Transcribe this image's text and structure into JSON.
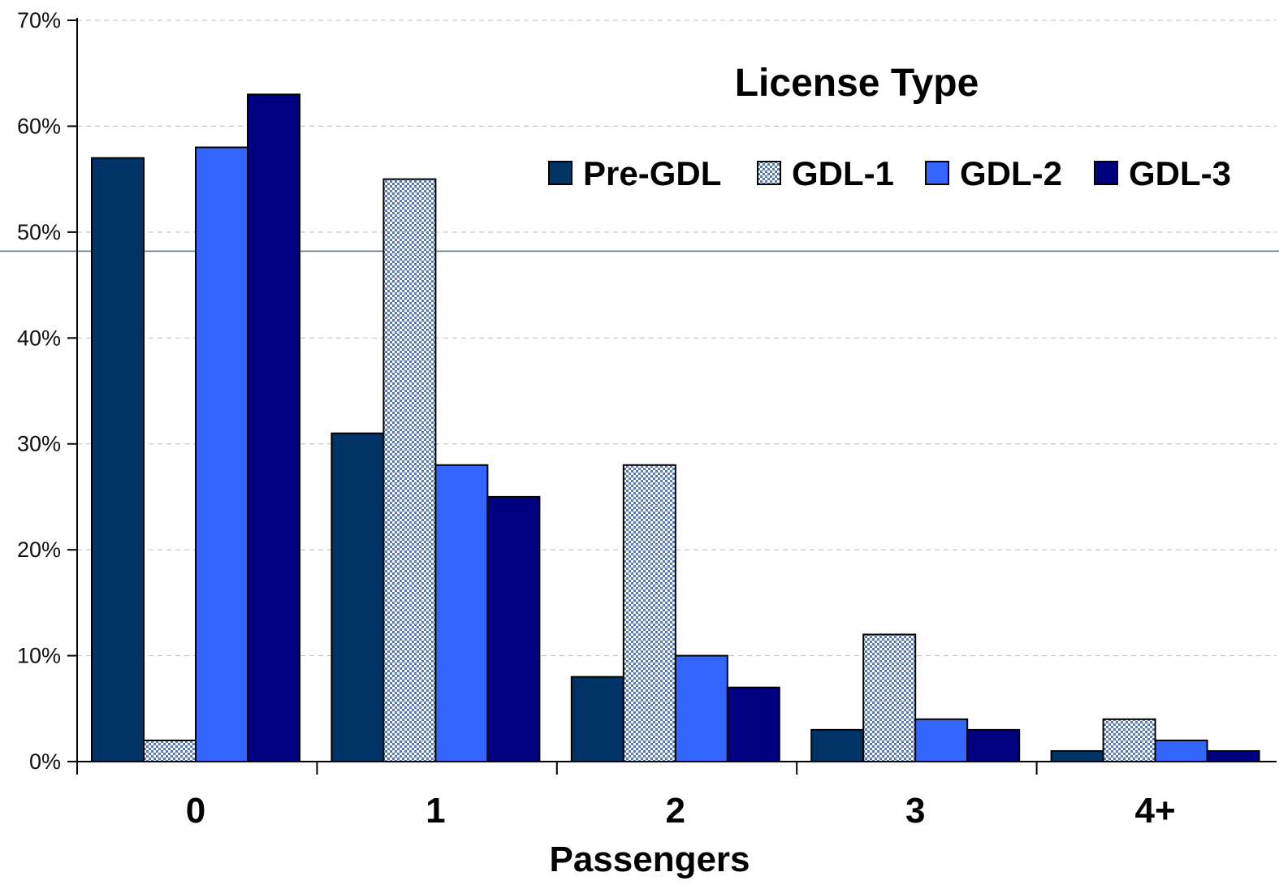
{
  "chart_data": {
    "type": "bar",
    "categories": [
      "0",
      "1",
      "2",
      "3",
      "4+"
    ],
    "series": [
      {
        "name": "Pre-GDL",
        "values": [
          57,
          31,
          8,
          3,
          1
        ],
        "color": "#003366",
        "pattern": "solid"
      },
      {
        "name": "GDL-1",
        "values": [
          2,
          55,
          28,
          12,
          4
        ],
        "color": "#c8d8ee",
        "pattern": "checker"
      },
      {
        "name": "GDL-2",
        "values": [
          58,
          28,
          10,
          4,
          2
        ],
        "color": "#3366ff",
        "pattern": "solid"
      },
      {
        "name": "GDL-3",
        "values": [
          63,
          25,
          7,
          3,
          1
        ],
        "color": "#000080",
        "pattern": "solid"
      }
    ],
    "title": "",
    "xlabel": "Passengers",
    "ylabel": "",
    "ylim": [
      0,
      70
    ],
    "yticks": [
      "0%",
      "10%",
      "20%",
      "30%",
      "40%",
      "50%",
      "60%",
      "70%"
    ],
    "legend_title": "License Type",
    "legend_position": "top-right",
    "grid": "horizontal-dashed",
    "reference_line": 48.2,
    "reference_line_color": "#4a7a8a"
  }
}
